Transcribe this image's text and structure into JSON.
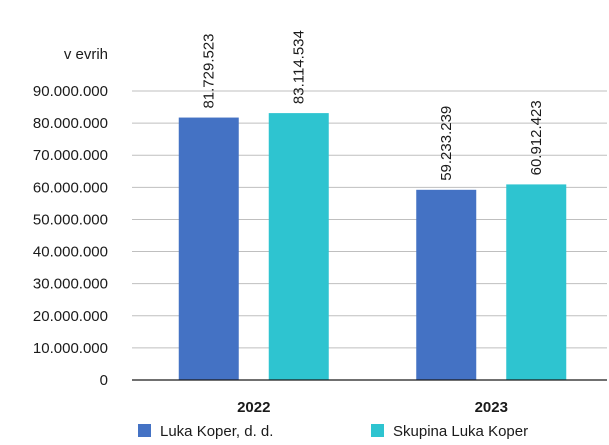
{
  "chart_data": {
    "type": "bar",
    "unit_label": "v  evrih",
    "categories": [
      "2022",
      "2023"
    ],
    "series": [
      {
        "name": "Luka Koper, d. d.",
        "color": "#4472c4",
        "values": [
          81729523,
          59233239
        ],
        "labels": [
          "81.729.523",
          "59.233.239"
        ]
      },
      {
        "name": "Skupina Luka Koper",
        "color": "#2ec4d0",
        "values": [
          83114534,
          60912423
        ],
        "labels": [
          "83.114.534",
          "60.912.423"
        ]
      }
    ],
    "ylim": [
      0,
      90000000
    ],
    "y_ticks": [
      0,
      10000000,
      20000000,
      30000000,
      40000000,
      50000000,
      60000000,
      70000000,
      80000000,
      90000000
    ],
    "y_tick_labels": [
      "0",
      "10.000.000",
      "20.000.000",
      "30.000.000",
      "40.000.000",
      "50.000.000",
      "60.000.000",
      "70.000.000",
      "80.000.000",
      "90.000.000"
    ],
    "grid": true,
    "legend_position": "bottom"
  }
}
